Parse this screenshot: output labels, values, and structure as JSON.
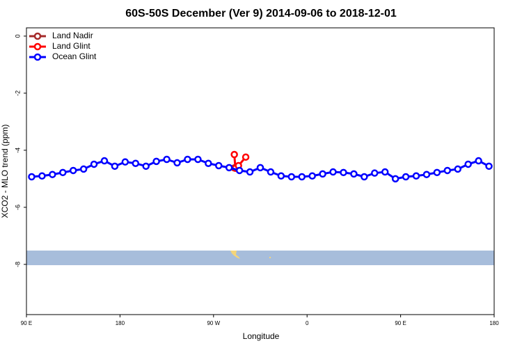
{
  "chart_data": {
    "type": "line",
    "title": "60S-50S December (Ver 9)   2014-09-06 to 2018-12-01",
    "x_label": "Longitude",
    "y_label": "XCO2 - MLO trend (ppm)",
    "xlim": [
      90,
      540
    ],
    "ylim": [
      -9.76,
      0.29
    ],
    "xticks": [
      {
        "value": 90,
        "label": "90 E"
      },
      {
        "value": 180,
        "label": "180"
      },
      {
        "value": 270,
        "label": "90 W"
      },
      {
        "value": 360,
        "label": "0"
      },
      {
        "value": 450,
        "label": "90 E"
      },
      {
        "value": 540,
        "label": "180"
      }
    ],
    "yticks": [
      0,
      -2,
      -4,
      -6,
      -8
    ],
    "legend": "topleft",
    "series": [
      {
        "name": "Land Nadir",
        "color": "#a52a2a",
        "x": [
          290
        ],
        "values": [
          -4.62
        ]
      },
      {
        "name": "Land Glint",
        "color": "#ff0000",
        "x": [
          290,
          291,
          294,
          301
        ],
        "values": [
          -4.15,
          -4.63,
          -4.54,
          -4.24
        ]
      },
      {
        "name": "Ocean Glint",
        "color": "#0000ff",
        "x": [
          95,
          105,
          115,
          125,
          135,
          145,
          155,
          165,
          175,
          185,
          195,
          205,
          215,
          225,
          235,
          245,
          255,
          265,
          275,
          285,
          295,
          305,
          315,
          325,
          335,
          345,
          355,
          365,
          375,
          385,
          395,
          405,
          415,
          425,
          435,
          445,
          455,
          465,
          475,
          485,
          495,
          505,
          515,
          525,
          535
        ],
        "values": [
          -4.93,
          -4.9,
          -4.85,
          -4.78,
          -4.71,
          -4.66,
          -4.49,
          -4.37,
          -4.56,
          -4.41,
          -4.46,
          -4.56,
          -4.39,
          -4.32,
          -4.44,
          -4.32,
          -4.32,
          -4.46,
          -4.54,
          -4.61,
          -4.71,
          -4.76,
          -4.61,
          -4.76,
          -4.9,
          -4.93,
          -4.93,
          -4.9,
          -4.83,
          -4.76,
          -4.78,
          -4.83,
          -4.93,
          -4.8,
          -4.76,
          -5.0,
          -4.93,
          -4.9,
          -4.85,
          -4.78,
          -4.71,
          -4.66,
          -4.49,
          -4.37,
          -4.56
        ]
      }
    ]
  }
}
